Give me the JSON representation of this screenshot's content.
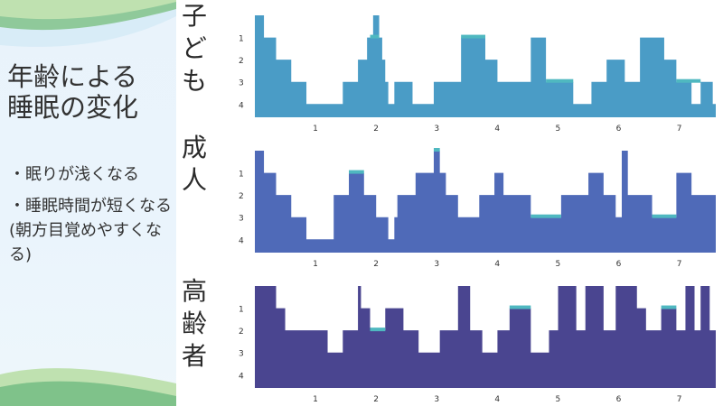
{
  "slide": {
    "title_line1": "年齢による",
    "title_line2": "睡眠の変化",
    "bullets": [
      "・眠りが浅くなる",
      "・睡眠時間が短くなる(朝方目覚めやすくなる)"
    ]
  },
  "groups": {
    "child": "子ども",
    "adult": "成人",
    "elderly": "高齢者"
  },
  "colors": {
    "child": "#4a9cc6",
    "adult": "#4f6ab8",
    "elderly": "#4a4590",
    "rem": "#4fb8c0"
  },
  "chart_data": [
    {
      "type": "area",
      "series": [
        {
          "name": "子ども",
          "x": [
            0,
            0.15,
            0.35,
            0.6,
            0.85,
            1.45,
            1.7,
            1.85,
            1.95,
            2.05,
            2.1,
            2.15,
            2.2,
            2.3,
            2.6,
            2.95,
            3.4,
            3.8,
            4.0,
            4.55,
            4.8,
            5.25,
            5.55,
            5.8,
            6.1,
            6.35,
            6.75,
            6.95,
            7.2,
            7.35,
            7.55
          ],
          "values": [
            0,
            1,
            2,
            3,
            4,
            3,
            2,
            1,
            0,
            1,
            2,
            3,
            4,
            3,
            4,
            3,
            1,
            2,
            3,
            1,
            3,
            4,
            3,
            2,
            3,
            1,
            2,
            3,
            4,
            3,
            4
          ],
          "rem_segments": [
            [
              1.9,
              2.05
            ],
            [
              3.4,
              3.8
            ],
            [
              4.8,
              5.25
            ],
            [
              6.95,
              7.35
            ]
          ]
        }
      ],
      "x": [
        1,
        2,
        3,
        4,
        5,
        6,
        7
      ],
      "y_ticks": [
        1,
        2,
        3,
        4
      ],
      "xlim": [
        0,
        7.6
      ],
      "ylim": [
        0,
        4
      ]
    },
    {
      "type": "area",
      "series": [
        {
          "name": "成人",
          "x": [
            0,
            0.15,
            0.35,
            0.6,
            0.85,
            1.3,
            1.55,
            1.8,
            2.0,
            2.2,
            2.3,
            2.35,
            2.65,
            2.95,
            3.05,
            3.15,
            3.35,
            3.7,
            3.95,
            4.1,
            4.55,
            5.05,
            5.5,
            5.75,
            5.95,
            6.05,
            6.15,
            6.55,
            6.95,
            7.2,
            7.6
          ],
          "values": [
            0,
            1,
            2,
            3,
            4,
            2,
            1,
            2,
            3,
            4,
            3,
            2,
            1,
            0,
            1,
            2,
            3,
            2,
            1,
            2,
            3,
            2,
            1,
            2,
            3,
            0,
            2,
            3,
            1,
            2,
            3
          ],
          "rem_segments": [
            [
              1.55,
              1.8
            ],
            [
              2.95,
              3.05
            ],
            [
              4.55,
              5.05
            ],
            [
              6.55,
              6.95
            ]
          ]
        }
      ],
      "x": [
        1,
        2,
        3,
        4,
        5,
        6,
        7
      ],
      "y_ticks": [
        1,
        2,
        3,
        4
      ],
      "xlim": [
        0,
        7.6
      ],
      "ylim": [
        0,
        4
      ]
    },
    {
      "type": "area",
      "series": [
        {
          "name": "高齢者",
          "x": [
            0,
            0.35,
            0.5,
            0.9,
            1.2,
            1.45,
            1.7,
            1.75,
            1.9,
            2.15,
            2.45,
            2.7,
            3.05,
            3.05,
            3.35,
            3.55,
            3.75,
            4.0,
            4.2,
            4.55,
            4.85,
            5.0,
            5.3,
            5.45,
            5.75,
            5.95,
            6.3,
            6.45,
            6.7,
            6.95,
            7.1,
            7.25,
            7.35,
            7.5
          ],
          "values": [
            0,
            1,
            2,
            2,
            3,
            2,
            0,
            1,
            2,
            1,
            2,
            3,
            2,
            2,
            0,
            2,
            3,
            2,
            1,
            3,
            2,
            0,
            2,
            0,
            2,
            0,
            1,
            2,
            1,
            2,
            0,
            2,
            0,
            2
          ],
          "rem_segments": [
            [
              1.9,
              2.15
            ],
            [
              4.2,
              4.55
            ],
            [
              6.7,
              6.95
            ]
          ]
        }
      ],
      "x": [
        1,
        2,
        3,
        4,
        5,
        6,
        7
      ],
      "y_ticks": [
        1,
        2,
        3,
        4
      ],
      "xlim": [
        0,
        7.6
      ],
      "ylim": [
        0,
        4
      ]
    }
  ]
}
